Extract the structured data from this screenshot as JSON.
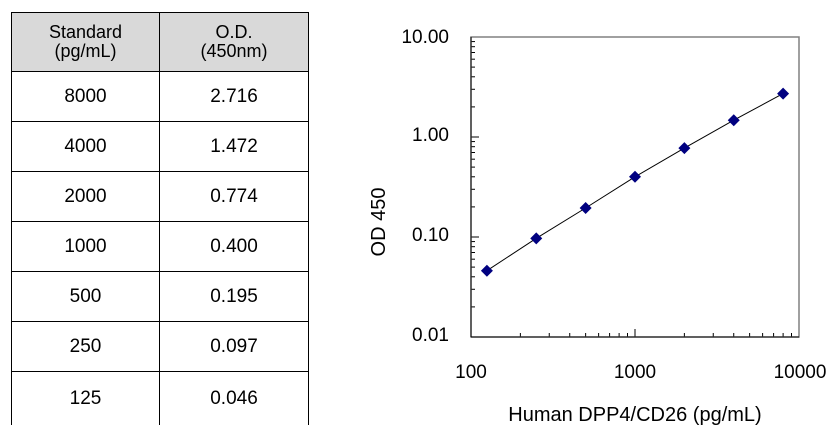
{
  "table": {
    "headers": [
      "Standard\n(pg/mL)",
      "O.D.\n(450nm)"
    ],
    "header_lines": [
      [
        "Standard",
        "(pg/mL)"
      ],
      [
        "O.D.",
        "(450nm)"
      ]
    ],
    "rows": [
      {
        "standard": "8000",
        "od": "2.716"
      },
      {
        "standard": "4000",
        "od": "1.472"
      },
      {
        "standard": "2000",
        "od": "0.774"
      },
      {
        "standard": "1000",
        "od": "0.400"
      },
      {
        "standard": "500",
        "od": "0.195"
      },
      {
        "standard": "250",
        "od": "0.097"
      },
      {
        "standard": "125",
        "od": "0.046"
      }
    ]
  },
  "chart_data": {
    "type": "scatter",
    "x": [
      125,
      250,
      500,
      1000,
      2000,
      4000,
      8000
    ],
    "y": [
      0.046,
      0.097,
      0.195,
      0.4,
      0.774,
      1.472,
      2.716
    ],
    "xlabel": "Human DPP4/CD26 (pg/mL)",
    "ylabel": "OD 450",
    "xscale": "log",
    "yscale": "log",
    "xlim": [
      100,
      10000
    ],
    "ylim": [
      0.01,
      10
    ],
    "xticks": [
      "100",
      "1000",
      "10000"
    ],
    "yticks": [
      "0.01",
      "0.10",
      "1.00",
      "10.00"
    ],
    "marker": "diamond",
    "marker_color": "#000080",
    "trendline": true,
    "trendline_color": "#000000",
    "grid": false,
    "legend": "none"
  }
}
